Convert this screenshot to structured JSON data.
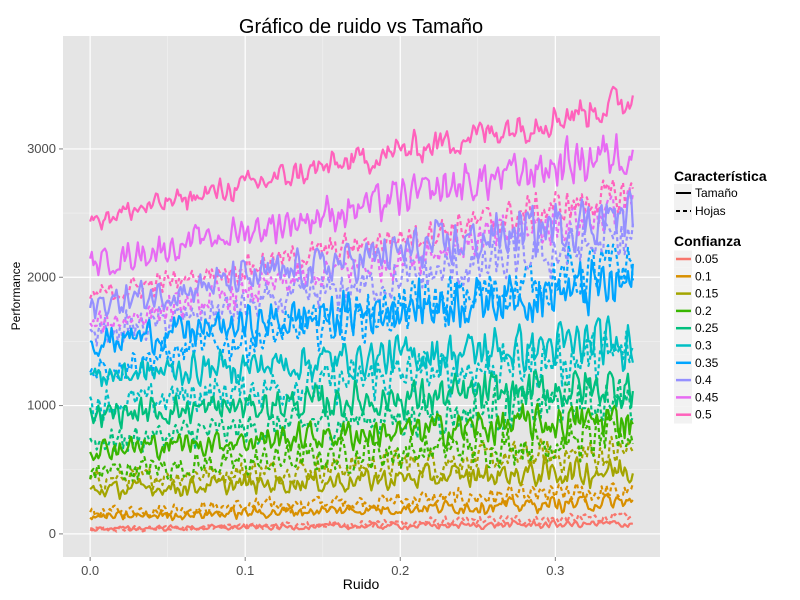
{
  "chart_data": {
    "type": "line",
    "title": "Gráfico de ruido vs Tamaño",
    "xlabel": "Ruido",
    "ylabel": "Performance",
    "xlim": [
      -0.0175,
      0.3675
    ],
    "ylim": [
      -180,
      3880
    ],
    "x_ticks": [
      {
        "value": 0.0,
        "label": "0.0"
      },
      {
        "value": 0.1,
        "label": "0.1"
      },
      {
        "value": 0.2,
        "label": "0.2"
      },
      {
        "value": 0.3,
        "label": "0.3"
      }
    ],
    "y_ticks": [
      {
        "value": 0,
        "label": "0"
      },
      {
        "value": 1000,
        "label": "1000"
      },
      {
        "value": 2000,
        "label": "2000"
      },
      {
        "value": 3000,
        "label": "3000"
      }
    ],
    "x_range": [
      0.0,
      0.35
    ],
    "grid": true,
    "background": "#e5e5e5",
    "legend": {
      "position": "right",
      "linetype": {
        "title": "Característica",
        "entries": [
          {
            "name": "Tamaño",
            "dash": "solid"
          },
          {
            "name": "Hojas",
            "dash": "dashed"
          }
        ]
      },
      "color": {
        "title": "Confianza",
        "entries": [
          "0.05",
          "0.1",
          "0.15",
          "0.2",
          "0.25",
          "0.3",
          "0.35",
          "0.4",
          "0.45",
          "0.5"
        ]
      }
    },
    "series": [
      {
        "name": "0.05",
        "color": "#F8766D",
        "tamano": {
          "start": 40,
          "end": 80,
          "noise": 30
        },
        "hojas": {
          "start": 30,
          "end": 130,
          "noise": 40
        }
      },
      {
        "name": "0.1",
        "color": "#D89000",
        "tamano": {
          "start": 130,
          "end": 250,
          "noise": 60
        },
        "hojas": {
          "start": 170,
          "end": 330,
          "noise": 80
        }
      },
      {
        "name": "0.15",
        "color": "#A3A500",
        "tamano": {
          "start": 340,
          "end": 500,
          "noise": 110
        },
        "hojas": {
          "start": 420,
          "end": 640,
          "noise": 130
        }
      },
      {
        "name": "0.2",
        "color": "#39B600",
        "tamano": {
          "start": 660,
          "end": 900,
          "noise": 150
        },
        "hojas": {
          "start": 480,
          "end": 760,
          "noise": 160
        }
      },
      {
        "name": "0.25",
        "color": "#00BF7D",
        "tamano": {
          "start": 930,
          "end": 1150,
          "noise": 170
        },
        "hojas": {
          "start": 720,
          "end": 1050,
          "noise": 180
        }
      },
      {
        "name": "0.3",
        "color": "#00BFC4",
        "tamano": {
          "start": 1230,
          "end": 1500,
          "noise": 190
        },
        "hojas": {
          "start": 1000,
          "end": 1400,
          "noise": 200
        }
      },
      {
        "name": "0.35",
        "color": "#00A5FF",
        "tamano": {
          "start": 1500,
          "end": 1950,
          "noise": 210
        },
        "hojas": {
          "start": 1280,
          "end": 2100,
          "noise": 220
        }
      },
      {
        "name": "0.4",
        "color": "#9590FF",
        "tamano": {
          "start": 1780,
          "end": 2500,
          "noise": 200
        },
        "hojas": {
          "start": 1550,
          "end": 2300,
          "noise": 200
        }
      },
      {
        "name": "0.45",
        "color": "#E76BF3",
        "tamano": {
          "start": 2100,
          "end": 3000,
          "noise": 180
        },
        "hojas": {
          "start": 1620,
          "end": 2550,
          "noise": 170
        }
      },
      {
        "name": "0.5",
        "color": "#FF62BC",
        "tamano": {
          "start": 2450,
          "end": 3380,
          "noise": 140
        },
        "hojas": {
          "start": 1850,
          "end": 2650,
          "noise": 140
        }
      }
    ]
  }
}
